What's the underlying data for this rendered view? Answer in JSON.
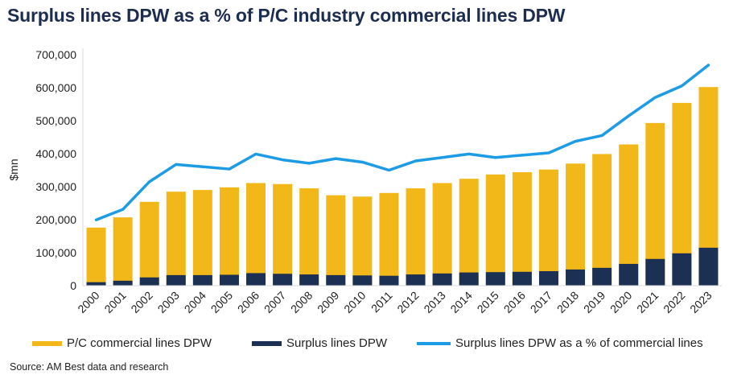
{
  "chart_data": {
    "type": "bar",
    "title": "Surplus lines DPW as a % of P/C industry commercial lines DPW",
    "ylabel": "$mn",
    "ylim": [
      0,
      700000
    ],
    "yticks": [
      "0",
      "100,000",
      "200,000",
      "300,000",
      "400,000",
      "500,000",
      "600,000",
      "700,000"
    ],
    "secondary_ylim_percent": [
      0,
      20
    ],
    "secondary_axis_visible": false,
    "grid": false,
    "legend_position": "bottom",
    "categories": [
      "2000",
      "2001",
      "2002",
      "2003",
      "2004",
      "2005",
      "2006",
      "2007",
      "2008",
      "2009",
      "2010",
      "2011",
      "2012",
      "2013",
      "2014",
      "2015",
      "2016",
      "2017",
      "2018",
      "2019",
      "2020",
      "2021",
      "2022",
      "2023"
    ],
    "series": [
      {
        "name": "P/C commercial lines DPW",
        "type": "bar",
        "color": "#f2b81a",
        "values": [
          176000,
          207000,
          254000,
          285000,
          290000,
          298000,
          311000,
          308000,
          295000,
          274000,
          270000,
          281000,
          295000,
          311000,
          324000,
          337000,
          344000,
          352000,
          370000,
          399000,
          428000,
          493000,
          554000,
          602000
        ]
      },
      {
        "name": "Surplus lines DPW",
        "type": "bar",
        "color": "#1c3054",
        "values": [
          10500,
          15000,
          25000,
          32000,
          32000,
          33000,
          38000,
          36000,
          34000,
          32000,
          31000,
          30000,
          34000,
          37000,
          40000,
          41000,
          42000,
          44000,
          49000,
          54000,
          66000,
          81000,
          98000,
          115000
        ]
      },
      {
        "name": "Surplus lines DPW as a % of commercial lines",
        "type": "line",
        "color": "#1e9be5",
        "unit": "%",
        "values": [
          5.7,
          6.6,
          9.0,
          10.5,
          10.3,
          10.1,
          11.4,
          10.9,
          10.6,
          11.0,
          10.7,
          10.0,
          10.8,
          11.1,
          11.4,
          11.1,
          11.3,
          11.5,
          12.5,
          13.0,
          14.7,
          16.3,
          17.3,
          19.1
        ]
      }
    ]
  },
  "source": "Source: AM Best data and research"
}
